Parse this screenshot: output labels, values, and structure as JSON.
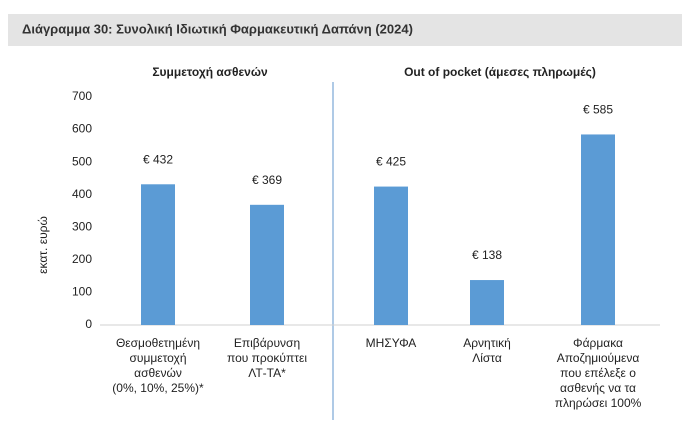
{
  "chart_data": {
    "type": "bar",
    "title": "Διάγραμμα 30: Συνολική Ιδιωτική Φαρμακευτική Δαπάνη (2024)",
    "group_labels": [
      "Συμμετοχή ασθενών",
      "Out of pocket (άμεσες πληρωμές)"
    ],
    "y_label": "εκατ. ευρώ",
    "categories": [
      [
        "Θεσμοθετημένη",
        "συμμετοχή",
        "ασθενών",
        "(0%, 10%, 25%)*"
      ],
      [
        "Επιβάρυνση",
        "που προκύπτει",
        "ΛΤ-ΤΑ*"
      ],
      [
        "ΜΗΣΥΦΑ"
      ],
      [
        "Αρνητική",
        "Λίστα"
      ],
      [
        "Φάρμακα",
        "Αποζημιούμενα",
        "που επέλεξε ο",
        "ασθενής να τα",
        "πληρώσει 100%"
      ]
    ],
    "values": [
      432,
      369,
      425,
      138,
      585
    ],
    "value_labels": [
      "€ 432",
      "€ 369",
      "€ 425",
      "€ 138",
      "€ 585"
    ],
    "color": "#5b9bd5",
    "ylim": [
      0,
      700
    ],
    "yticks": [
      0,
      100,
      200,
      300,
      400,
      500,
      600,
      700
    ],
    "grid": false
  }
}
